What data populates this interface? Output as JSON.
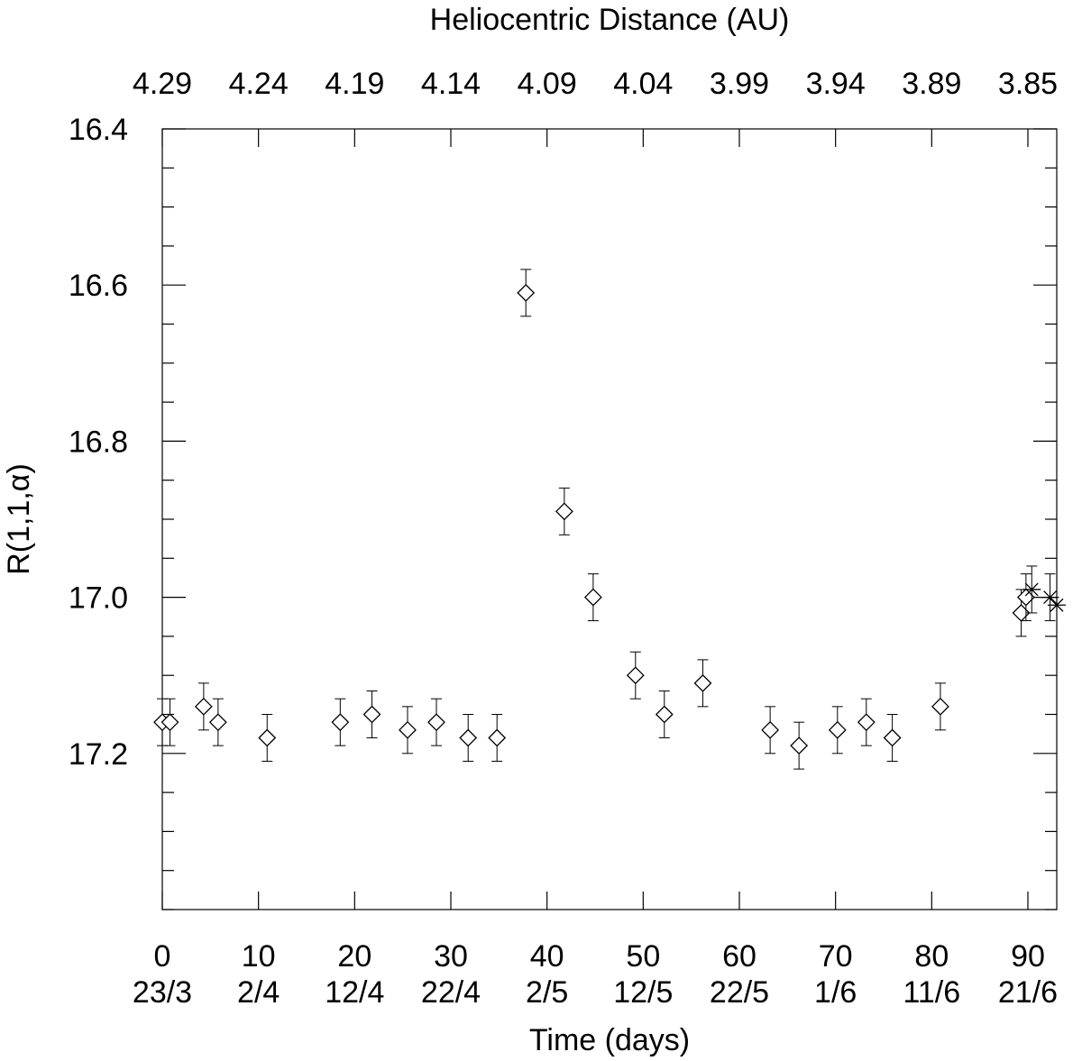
{
  "chart_data": {
    "type": "scatter",
    "xlabel": "Time (days)",
    "ylabel": "R(1,1,α)",
    "top_axis_label": "Heliocentric Distance (AU)",
    "xlim": [
      0,
      93
    ],
    "ylim": [
      17.4,
      16.4
    ],
    "y_inverted": true,
    "x_ticks": [
      {
        "value": 0,
        "label": "0",
        "date": "23/3"
      },
      {
        "value": 10,
        "label": "10",
        "date": "2/4"
      },
      {
        "value": 20,
        "label": "20",
        "date": "12/4"
      },
      {
        "value": 30,
        "label": "30",
        "date": "22/4"
      },
      {
        "value": 40,
        "label": "40",
        "date": "2/5"
      },
      {
        "value": 50,
        "label": "50",
        "date": "12/5"
      },
      {
        "value": 60,
        "label": "60",
        "date": "22/5"
      },
      {
        "value": 70,
        "label": "70",
        "date": "1/6"
      },
      {
        "value": 80,
        "label": "80",
        "date": "11/6"
      },
      {
        "value": 90,
        "label": "90",
        "date": "21/6"
      }
    ],
    "top_ticks": [
      {
        "value": 0,
        "label": "4.29"
      },
      {
        "value": 10,
        "label": "4.24"
      },
      {
        "value": 20,
        "label": "4.19"
      },
      {
        "value": 30,
        "label": "4.14"
      },
      {
        "value": 40,
        "label": "4.09"
      },
      {
        "value": 50,
        "label": "4.04"
      },
      {
        "value": 60,
        "label": "3.99"
      },
      {
        "value": 70,
        "label": "3.94"
      },
      {
        "value": 80,
        "label": "3.89"
      },
      {
        "value": 90,
        "label": "3.85"
      }
    ],
    "y_ticks": [
      {
        "value": 16.4,
        "label": "16.4"
      },
      {
        "value": 16.6,
        "label": "16.6"
      },
      {
        "value": 16.8,
        "label": "16.8"
      },
      {
        "value": 17.0,
        "label": "17.0"
      },
      {
        "value": 17.2,
        "label": "17.2"
      }
    ],
    "y_minor_step": 0.05,
    "series": [
      {
        "marker": "diamond",
        "points": [
          {
            "x": 0.0,
            "y": 17.16,
            "err": 0.03
          },
          {
            "x": 0.8,
            "y": 17.16,
            "err": 0.03
          },
          {
            "x": 4.3,
            "y": 17.14,
            "err": 0.03
          },
          {
            "x": 5.8,
            "y": 17.16,
            "err": 0.03
          },
          {
            "x": 10.9,
            "y": 17.18,
            "err": 0.03
          },
          {
            "x": 18.5,
            "y": 17.16,
            "err": 0.03
          },
          {
            "x": 21.8,
            "y": 17.15,
            "err": 0.03
          },
          {
            "x": 25.5,
            "y": 17.17,
            "err": 0.03
          },
          {
            "x": 28.5,
            "y": 17.16,
            "err": 0.03
          },
          {
            "x": 31.8,
            "y": 17.18,
            "err": 0.03
          },
          {
            "x": 34.8,
            "y": 17.18,
            "err": 0.03
          },
          {
            "x": 37.8,
            "y": 16.61,
            "err": 0.03
          },
          {
            "x": 41.8,
            "y": 16.89,
            "err": 0.03
          },
          {
            "x": 44.8,
            "y": 17.0,
            "err": 0.03
          },
          {
            "x": 49.2,
            "y": 17.1,
            "err": 0.03
          },
          {
            "x": 52.2,
            "y": 17.15,
            "err": 0.03
          },
          {
            "x": 56.2,
            "y": 17.11,
            "err": 0.03
          },
          {
            "x": 63.2,
            "y": 17.17,
            "err": 0.03
          },
          {
            "x": 66.2,
            "y": 17.19,
            "err": 0.03
          },
          {
            "x": 70.2,
            "y": 17.17,
            "err": 0.03
          },
          {
            "x": 73.2,
            "y": 17.16,
            "err": 0.03
          },
          {
            "x": 75.9,
            "y": 17.18,
            "err": 0.03
          },
          {
            "x": 80.9,
            "y": 17.14,
            "err": 0.03
          },
          {
            "x": 89.3,
            "y": 17.02,
            "err": 0.03
          },
          {
            "x": 89.8,
            "y": 17.0,
            "err": 0.03
          }
        ]
      },
      {
        "marker": "asterisk",
        "points": [
          {
            "x": 90.4,
            "y": 16.99,
            "err": 0.03
          },
          {
            "x": 92.3,
            "y": 17.0,
            "err": 0.03
          },
          {
            "x": 93.0,
            "y": 17.01,
            "err": 0.0
          }
        ]
      }
    ]
  }
}
